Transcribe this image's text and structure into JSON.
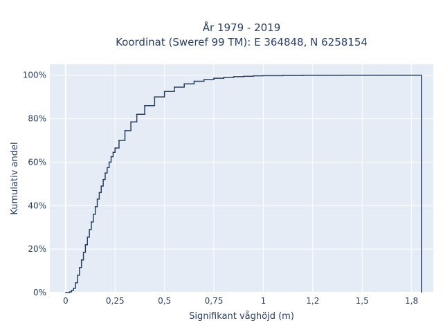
{
  "chart_data": {
    "type": "line",
    "step": "ecdf",
    "title_line1": "År 1979 - 2019",
    "title_line2": "Koordinat (Sweref 99 TM): E 364848, N 6258154",
    "xlabel": "Signifikant våghöjd (m)",
    "ylabel": "Kumulativ andel",
    "xlim": [
      -0.08,
      1.86
    ],
    "ylim": [
      0,
      1.05
    ],
    "x_ticks": [
      0,
      0.25,
      0.5,
      0.75,
      1,
      1.25,
      1.5,
      1.75
    ],
    "x_tick_labels": [
      "0",
      "0,25",
      "0,5",
      "0,75",
      "1",
      "1,2",
      "1,5",
      "1,8"
    ],
    "y_ticks": [
      0,
      0.2,
      0.4,
      0.6,
      0.8,
      1.0
    ],
    "y_tick_labels": [
      "0%",
      "20%",
      "40%",
      "60%",
      "80%",
      "100%"
    ],
    "grid": true,
    "colors": {
      "line": "#2a3f5f",
      "plot_bg": "#e5ecf6",
      "grid": "#ffffff"
    },
    "series": [
      {
        "x": [
          0,
          0.02,
          0.03,
          0.04,
          0.05,
          0.06,
          0.07,
          0.08,
          0.09,
          0.1,
          0.11,
          0.12,
          0.13,
          0.14,
          0.15,
          0.16,
          0.17,
          0.18,
          0.19,
          0.2,
          0.21,
          0.22,
          0.23,
          0.24,
          0.25,
          0.27,
          0.3,
          0.33,
          0.36,
          0.4,
          0.45,
          0.5,
          0.55,
          0.6,
          0.65,
          0.7,
          0.75,
          0.8,
          0.85,
          0.9,
          0.95,
          1.0,
          1.1,
          1.2,
          1.3,
          1.4,
          1.5,
          1.6,
          1.7,
          1.78,
          1.8
        ],
        "y": [
          0,
          0.003,
          0.01,
          0.02,
          0.045,
          0.08,
          0.115,
          0.15,
          0.185,
          0.22,
          0.255,
          0.29,
          0.325,
          0.36,
          0.395,
          0.43,
          0.46,
          0.49,
          0.52,
          0.55,
          0.575,
          0.6,
          0.625,
          0.645,
          0.665,
          0.7,
          0.745,
          0.785,
          0.82,
          0.86,
          0.9,
          0.925,
          0.945,
          0.96,
          0.972,
          0.98,
          0.986,
          0.99,
          0.993,
          0.995,
          0.997,
          0.998,
          0.9988,
          0.9993,
          0.9996,
          0.9998,
          0.9999,
          0.99995,
          0.99998,
          0.99999,
          1.0
        ],
        "end_x": 1.8
      }
    ]
  }
}
